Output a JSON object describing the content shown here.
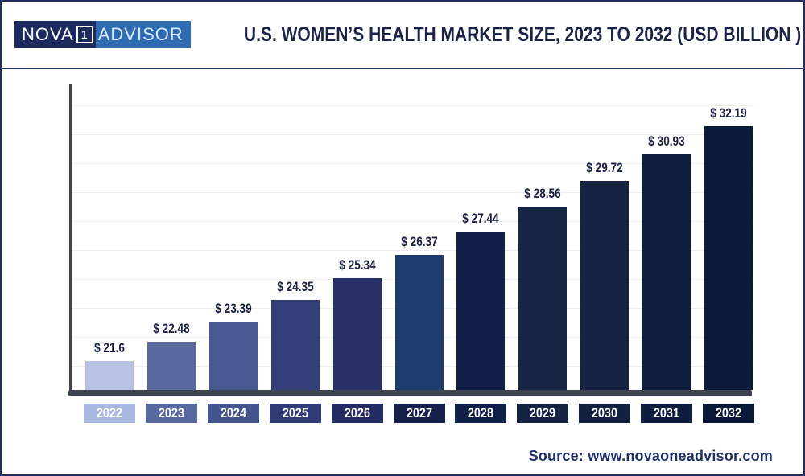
{
  "header": {
    "logo": {
      "text_left": "NOVA",
      "text_boxed": "1",
      "text_right": "ADVISOR"
    },
    "title": "U.S. WOMEN’S HEALTH MARKET SIZE, 2023 TO 2032 (USD BILLION )"
  },
  "chart_data": {
    "type": "bar",
    "title": "U.S. Women’s Health Market Size, 2023 to 2032 (USD Billion)",
    "categories": [
      "2022",
      "2023",
      "2024",
      "2025",
      "2026",
      "2027",
      "2028",
      "2029",
      "2030",
      "2031",
      "2032"
    ],
    "values": [
      21.6,
      22.48,
      23.39,
      24.35,
      25.34,
      26.37,
      27.44,
      28.56,
      29.72,
      30.93,
      32.19
    ],
    "value_labels": [
      "$ 21.6",
      "$ 22.48",
      "$ 23.39",
      "$ 24.35",
      "$ 25.34",
      "$ 26.37",
      "$ 27.44",
      "$ 28.56",
      "$ 29.72",
      "$ 30.93",
      "$ 32.19"
    ],
    "value_prefix": "$ ",
    "bar_colors": [
      "#b7c2e4",
      "#59699f",
      "#475893",
      "#323f7a",
      "#272f66",
      "#1e3d6e",
      "#102048",
      "#172544",
      "#152241",
      "#0f1d3f",
      "#0b1a39"
    ],
    "tick_colors": [
      "#a9b8e0",
      "#56689e",
      "#44558e",
      "#2f3c76",
      "#242b60",
      "#16214b",
      "#101f47",
      "#152342",
      "#142040",
      "#0e1c3e",
      "#0a1938"
    ],
    "xlabel": "",
    "ylabel": "",
    "ylim": [
      20.3,
      34.1
    ],
    "grid": true,
    "gridline_count": 10,
    "legend": false,
    "value_label_position": "above-bars"
  },
  "footer": {
    "source": "Source: www.novaoneadvisor.com"
  },
  "colors": {
    "frame": "#232c5e",
    "axis": "#3e434f",
    "gridline": "#ededed",
    "title_text": "#1b2347",
    "value_label_text": "#1b2240",
    "tick_text": "#ffffff",
    "source_text": "#20306b",
    "logo_left_bg": "#1c2a5e",
    "logo_right_bg": "#2e6bb0",
    "logo_text": "#ffffff",
    "logo_right_text": "#d9e9fa",
    "background": "#ffffff"
  }
}
